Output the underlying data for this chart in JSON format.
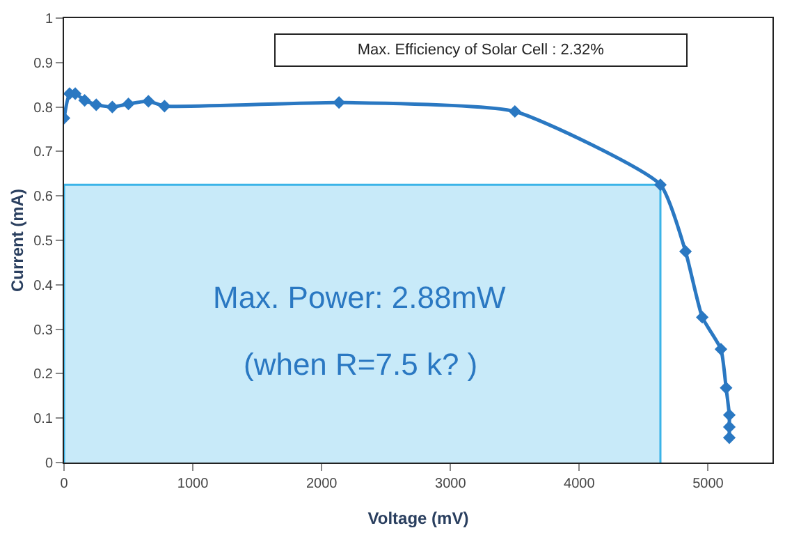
{
  "chart_data": {
    "type": "line",
    "xlabel": "Voltage (mV)",
    "ylabel": "Current (mA)",
    "series": [
      {
        "type": "area",
        "color": "#3bb4e8",
        "x": [
          0,
          0,
          4630,
          4630
        ],
        "values": [
          0,
          0.625,
          0.625,
          0
        ],
        "marker": "none"
      },
      {
        "color": "#2a78c2",
        "marker": "diamond",
        "x": [
          0,
          43,
          87,
          160,
          250,
          375,
          500,
          655,
          780,
          2135,
          3500,
          4630,
          4825,
          4955,
          5100,
          5140,
          5165,
          5165,
          5165
        ],
        "values": [
          0.775,
          0.83,
          0.83,
          0.815,
          0.805,
          0.8,
          0.807,
          0.813,
          0.802,
          0.81,
          0.79,
          0.625,
          0.475,
          0.327,
          0.255,
          0.168,
          0.107,
          0.08,
          0.056
        ]
      }
    ],
    "annotations": [
      "Max. Efficiency of Solar Cell : 2.32%",
      "Max. Power: 2.88mW",
      "(when R=7.5 k? )"
    ],
    "xlim": [
      0,
      5500
    ],
    "xticks": [
      0,
      1000,
      2000,
      3000,
      4000,
      5000
    ],
    "ylim": [
      0,
      1
    ],
    "yticks": [
      0,
      0.1,
      0.2,
      0.3,
      0.4,
      0.5,
      0.6,
      0.7,
      0.8,
      0.9,
      1
    ]
  }
}
